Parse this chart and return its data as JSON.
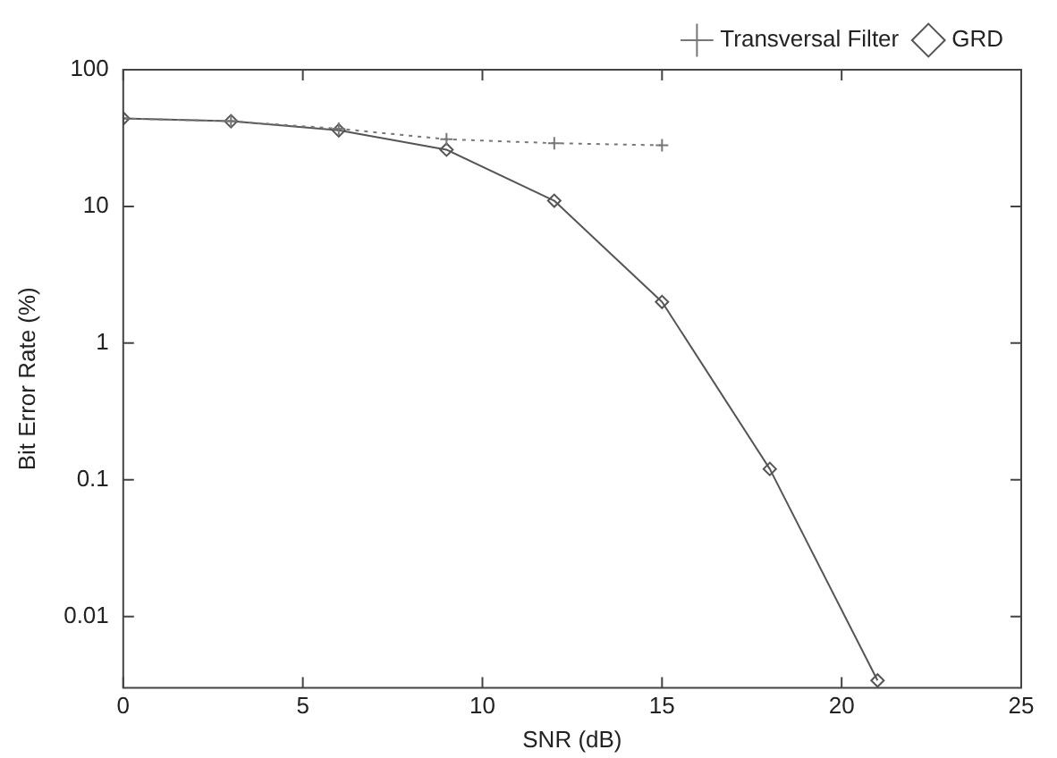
{
  "chart_data": {
    "type": "line",
    "xlabel": "SNR (dB)",
    "ylabel": "Bit Error Rate (%)",
    "x": [
      0,
      3,
      6,
      9,
      12,
      15,
      18,
      21
    ],
    "series": [
      {
        "name": "GRD",
        "color": "#555555",
        "marker": "diamond",
        "line_style": "solid",
        "values": [
          44,
          42,
          36,
          26,
          11,
          2.0,
          0.12,
          0.0034
        ]
      },
      {
        "name": "Transversal Filter",
        "color": "#777777",
        "marker": "cross",
        "line_style": "dotted",
        "values": [
          44,
          42,
          37,
          31,
          29,
          28,
          null,
          null
        ]
      }
    ],
    "xlim": [
      0,
      25
    ],
    "xticks": [
      0,
      5,
      10,
      15,
      20,
      25
    ],
    "ylim": [
      0.003,
      100
    ],
    "yticks": [
      0.01,
      0.1,
      1,
      10,
      100
    ],
    "log": "y",
    "grid": false,
    "legend": "top right"
  }
}
